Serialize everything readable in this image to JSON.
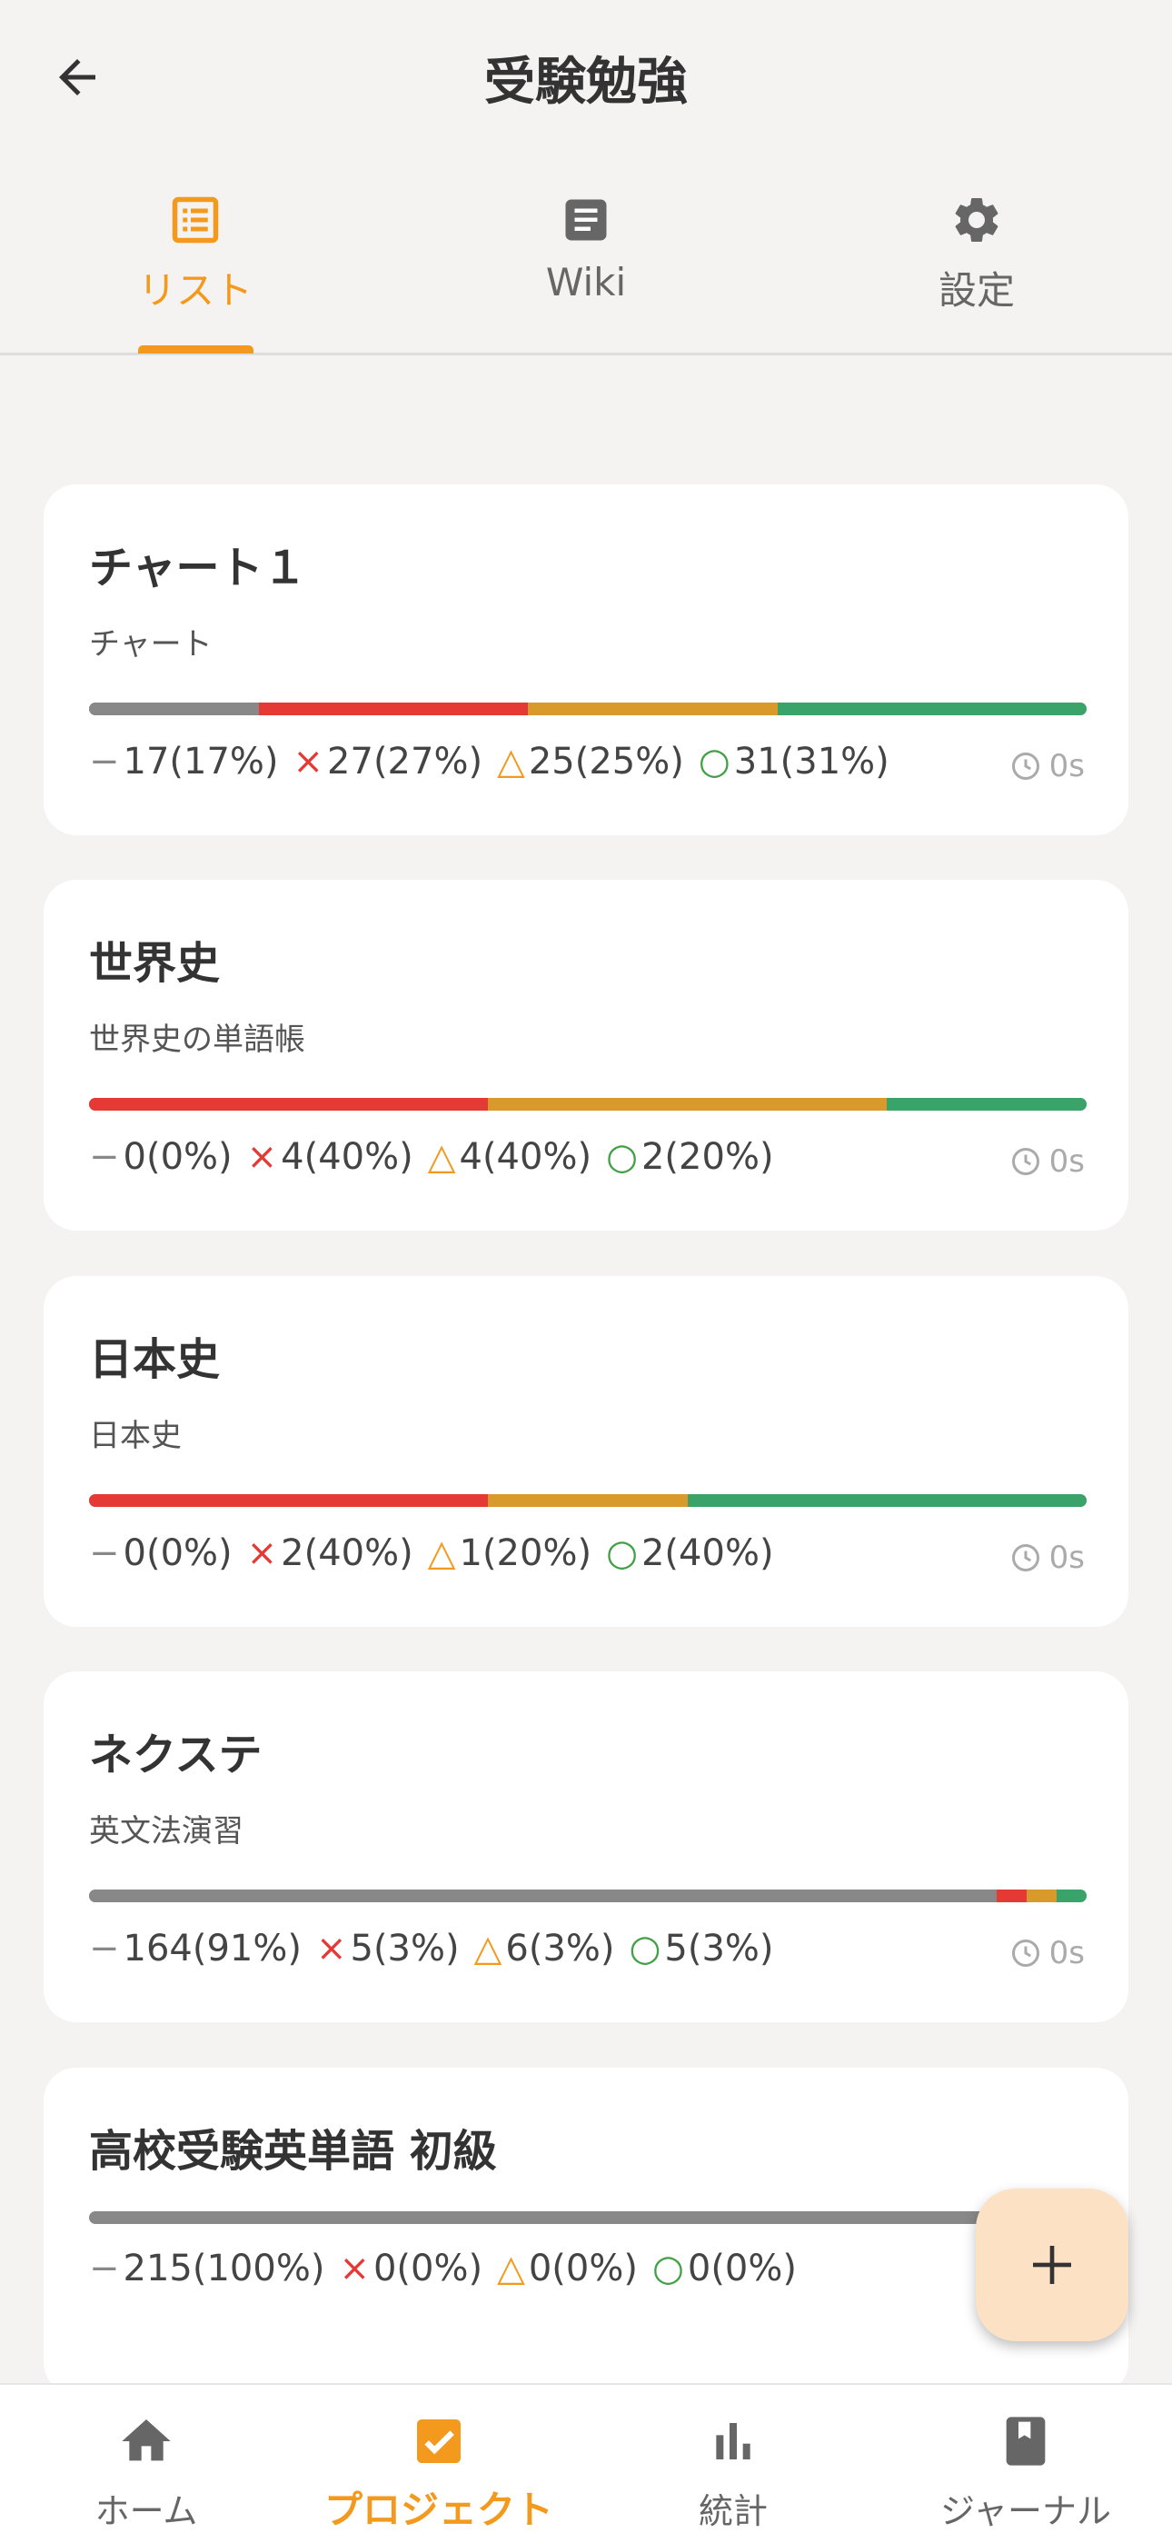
{
  "header": {
    "title": "受験勉強"
  },
  "tabs": [
    {
      "label": "リスト",
      "icon": "list-icon",
      "active": true
    },
    {
      "label": "Wiki",
      "icon": "document-icon",
      "active": false
    },
    {
      "label": "設定",
      "icon": "gear-icon",
      "active": false
    }
  ],
  "colors": {
    "accent": "#f39a1e",
    "none": "#888888",
    "wrong": "#e53935",
    "partial": "#d89b2b",
    "correct": "#3aa36a"
  },
  "cards": [
    {
      "title": "チャート１",
      "subtitle": "チャート",
      "none": "17(17%)",
      "wrong": "27(27%)",
      "partial": "25(25%)",
      "correct": "31(31%)",
      "time": "0s",
      "ratio": {
        "none": 0.17,
        "wrong": 0.27,
        "partial": 0.25,
        "correct": 0.31
      }
    },
    {
      "title": "世界史",
      "subtitle": "世界史の単語帳",
      "none": "0(0%)",
      "wrong": "4(40%)",
      "partial": "4(40%)",
      "correct": "2(20%)",
      "time": "0s",
      "ratio": {
        "none": 0.0,
        "wrong": 0.4,
        "partial": 0.4,
        "correct": 0.2
      }
    },
    {
      "title": "日本史",
      "subtitle": "日本史",
      "none": "0(0%)",
      "wrong": "2(40%)",
      "partial": "1(20%)",
      "correct": "2(40%)",
      "time": "0s",
      "ratio": {
        "none": 0.0,
        "wrong": 0.4,
        "partial": 0.2,
        "correct": 0.4
      }
    },
    {
      "title": "ネクステ",
      "subtitle": "英文法演習",
      "none": "164(91%)",
      "wrong": "5(3%)",
      "partial": "6(3%)",
      "correct": "5(3%)",
      "time": "0s",
      "ratio": {
        "none": 0.91,
        "wrong": 0.03,
        "partial": 0.03,
        "correct": 0.03
      }
    },
    {
      "title": "高校受験英単語 初級",
      "subtitle": "",
      "none": "215(100%)",
      "wrong": "0(0%)",
      "partial": "0(0%)",
      "correct": "0(0%)",
      "time": "",
      "ratio": {
        "none": 1.0,
        "wrong": 0.0,
        "partial": 0.0,
        "correct": 0.0
      }
    }
  ],
  "bottom_nav": [
    {
      "label": "ホーム",
      "icon": "home-icon",
      "active": false
    },
    {
      "label": "プロジェクト",
      "icon": "checkbox-icon",
      "active": true
    },
    {
      "label": "統計",
      "icon": "bar-chart-icon",
      "active": false
    },
    {
      "label": "ジャーナル",
      "icon": "book-icon",
      "active": false
    }
  ]
}
